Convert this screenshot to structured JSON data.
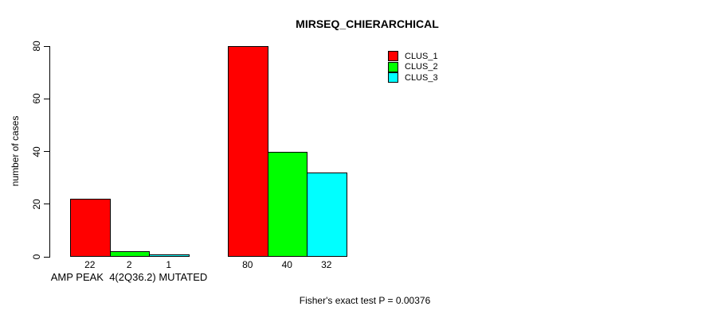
{
  "title": "MIRSEQ_CHIERARCHICAL",
  "chart_data": {
    "type": "bar",
    "title": "MIRSEQ_CHIERARCHICAL",
    "xlabel": "",
    "ylabel": "number of cases",
    "ylim": [
      0,
      80
    ],
    "yticks": [
      0,
      20,
      40,
      60,
      80
    ],
    "grid": false,
    "legend_position": "top-right",
    "axis_color": "#000000",
    "background_color": "#ffffff",
    "categories": [
      "AMP PEAK  4(2Q36.2) MUTATED",
      ""
    ],
    "series": [
      {
        "name": "CLUS_1",
        "color": "#ff0000",
        "values": [
          22,
          80
        ]
      },
      {
        "name": "CLUS_2",
        "color": "#00ff00",
        "values": [
          2,
          40
        ]
      },
      {
        "name": "CLUS_3",
        "color": "#00ffff",
        "values": [
          1,
          32
        ]
      }
    ],
    "bar_value_labels": [
      [
        "22",
        "2",
        "1"
      ],
      [
        "80",
        "40",
        "32"
      ]
    ],
    "footnote": "Fisher's exact test P = 0.00376"
  }
}
